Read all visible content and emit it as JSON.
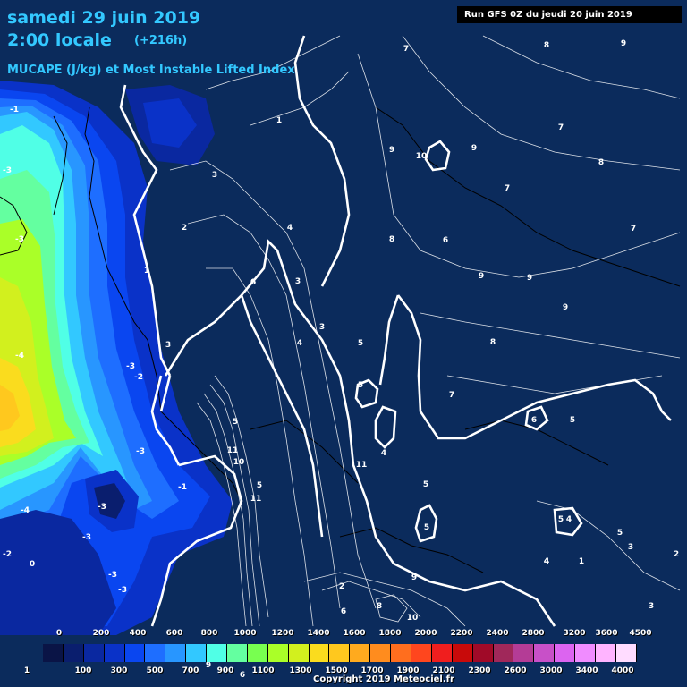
{
  "header": {
    "title_line1": "samedi 29 juin 2019",
    "title_line2": "2:00 locale",
    "forecast_offset": "(+216h)",
    "product": "MUCAPE (J/kg) et Most Instable Lifted Index",
    "run_info": "Run GFS 0Z du jeudi 20 juin 2019"
  },
  "colorbar": {
    "top_labels": [
      "0",
      "200",
      "400",
      "600",
      "800",
      "1000",
      "1200",
      "1400",
      "1600",
      "1800",
      "2000",
      "2200",
      "2400",
      "2800",
      "3200",
      "3600",
      "4500"
    ],
    "bottom_labels": [
      "1",
      "100",
      "300",
      "500",
      "700",
      "900",
      "1100",
      "1300",
      "1500",
      "1700",
      "1900",
      "2100",
      "2300",
      "2600",
      "3000",
      "3400",
      "4000"
    ],
    "colors": [
      "#0a1446",
      "#0a1e6e",
      "#0a28a0",
      "#0a32c8",
      "#0a46f0",
      "#1e6eff",
      "#2896ff",
      "#32c8ff",
      "#50ffe6",
      "#64ffa0",
      "#78ff50",
      "#aaff28",
      "#d2f01e",
      "#fadc1e",
      "#ffc81e",
      "#ffaa1e",
      "#ff8c1e",
      "#ff6e1e",
      "#ff461e",
      "#f01e1e",
      "#c80a0a",
      "#a00a28",
      "#a0285a",
      "#b43c96",
      "#c850c8",
      "#dc64f0",
      "#f08cff",
      "#ffb4ff",
      "#ffdcff"
    ]
  },
  "lifted_index_labels": [
    {
      "text": "-1"
    },
    {
      "text": "-3"
    },
    {
      "text": "-3"
    },
    {
      "text": "-4"
    },
    {
      "text": "-3"
    },
    {
      "text": "-2"
    },
    {
      "text": "-3"
    },
    {
      "text": "-1"
    },
    {
      "text": "-3"
    },
    {
      "text": "-4"
    },
    {
      "text": "-3"
    },
    {
      "text": "-2"
    },
    {
      "text": "0"
    },
    {
      "text": "-3"
    },
    {
      "text": "-3"
    },
    {
      "text": "1"
    },
    {
      "text": "3"
    },
    {
      "text": "2"
    },
    {
      "text": "1"
    },
    {
      "text": "3"
    },
    {
      "text": "4"
    },
    {
      "text": "6"
    },
    {
      "text": "3"
    },
    {
      "text": "3"
    },
    {
      "text": "4"
    },
    {
      "text": "5"
    },
    {
      "text": "5"
    },
    {
      "text": "7"
    },
    {
      "text": "8"
    },
    {
      "text": "9"
    },
    {
      "text": "7"
    },
    {
      "text": "9"
    },
    {
      "text": "10"
    },
    {
      "text": "9"
    },
    {
      "text": "8"
    },
    {
      "text": "7"
    },
    {
      "text": "6"
    },
    {
      "text": "7"
    },
    {
      "text": "9"
    },
    {
      "text": "8"
    },
    {
      "text": "6"
    },
    {
      "text": "9"
    },
    {
      "text": "9"
    },
    {
      "text": "8"
    },
    {
      "text": "7"
    },
    {
      "text": "6"
    },
    {
      "text": "5"
    },
    {
      "text": "5"
    },
    {
      "text": "11"
    },
    {
      "text": "10"
    },
    {
      "text": "11"
    },
    {
      "text": "11"
    },
    {
      "text": "4"
    },
    {
      "text": "5"
    },
    {
      "text": "4"
    },
    {
      "text": "5"
    },
    {
      "text": "4"
    },
    {
      "text": "5"
    },
    {
      "text": "3"
    },
    {
      "text": "2"
    },
    {
      "text": "1"
    },
    {
      "text": "3"
    },
    {
      "text": "2"
    },
    {
      "text": "9"
    },
    {
      "text": "6"
    },
    {
      "text": "8"
    },
    {
      "text": "10"
    },
    {
      "text": "9"
    },
    {
      "text": "6"
    },
    {
      "text": "5"
    },
    {
      "text": "5"
    },
    {
      "text": "4"
    }
  ],
  "footer": {
    "copyright": "Copyright 2019 Meteociel.fr"
  }
}
